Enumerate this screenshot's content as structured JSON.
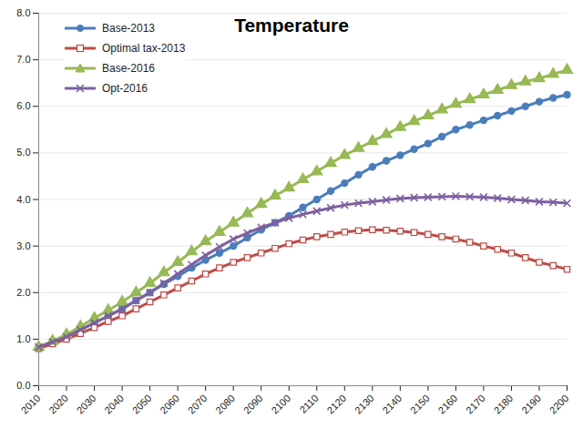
{
  "chart_data": {
    "type": "line",
    "title": "Temperature",
    "x": [
      2010,
      2015,
      2020,
      2025,
      2030,
      2035,
      2040,
      2045,
      2050,
      2055,
      2060,
      2065,
      2070,
      2075,
      2080,
      2085,
      2090,
      2095,
      2100,
      2105,
      2110,
      2115,
      2120,
      2125,
      2130,
      2135,
      2140,
      2145,
      2150,
      2155,
      2160,
      2165,
      2170,
      2175,
      2180,
      2185,
      2190,
      2195,
      2200
    ],
    "xlim": [
      2010,
      2200
    ],
    "xticks": [
      2010,
      2020,
      2030,
      2040,
      2050,
      2060,
      2070,
      2080,
      2090,
      2100,
      2110,
      2120,
      2130,
      2140,
      2150,
      2160,
      2170,
      2180,
      2190,
      2200
    ],
    "ylim": [
      0,
      8
    ],
    "yticks": [
      {
        "value": 0,
        "label": "0.0"
      },
      {
        "value": 1,
        "label": "1.0"
      },
      {
        "value": 2,
        "label": "2.0"
      },
      {
        "value": 3,
        "label": "3.0"
      },
      {
        "value": 4,
        "label": "4.0"
      },
      {
        "value": 5,
        "label": "5.0"
      },
      {
        "value": 6,
        "label": "6.0"
      },
      {
        "value": 7,
        "label": "7.0"
      },
      {
        "value": 8,
        "label": "8.0"
      }
    ],
    "grid": true,
    "legend": "top-left",
    "series": [
      {
        "name": "Base-2013",
        "color": "#4a7ebb",
        "marker": "circle",
        "values": [
          0.83,
          0.95,
          1.05,
          1.2,
          1.35,
          1.5,
          1.65,
          1.83,
          2.0,
          2.18,
          2.35,
          2.53,
          2.7,
          2.85,
          3.0,
          3.18,
          3.35,
          3.5,
          3.65,
          3.83,
          4.0,
          4.18,
          4.35,
          4.53,
          4.7,
          4.83,
          4.95,
          5.08,
          5.2,
          5.35,
          5.5,
          5.6,
          5.7,
          5.8,
          5.9,
          6.0,
          6.1,
          6.18,
          6.25
        ]
      },
      {
        "name": "Optimal tax-2013",
        "color": "#be4b48",
        "marker": "open_square",
        "values": [
          0.8,
          0.9,
          1.0,
          1.12,
          1.25,
          1.38,
          1.5,
          1.65,
          1.8,
          1.95,
          2.1,
          2.25,
          2.4,
          2.53,
          2.65,
          2.75,
          2.85,
          2.95,
          3.05,
          3.13,
          3.2,
          3.25,
          3.3,
          3.33,
          3.35,
          3.34,
          3.32,
          3.29,
          3.25,
          3.2,
          3.15,
          3.08,
          3.0,
          2.93,
          2.85,
          2.75,
          2.65,
          2.58,
          2.5
        ]
      },
      {
        "name": "Base-2016",
        "color": "#98b954",
        "marker": "triangle",
        "values": [
          0.83,
          0.96,
          1.1,
          1.27,
          1.45,
          1.62,
          1.8,
          2.0,
          2.2,
          2.43,
          2.65,
          2.88,
          3.1,
          3.3,
          3.5,
          3.7,
          3.9,
          4.08,
          4.25,
          4.43,
          4.6,
          4.78,
          4.95,
          5.1,
          5.25,
          5.4,
          5.55,
          5.68,
          5.8,
          5.93,
          6.05,
          6.15,
          6.25,
          6.35,
          6.45,
          6.53,
          6.6,
          6.69,
          6.78
        ]
      },
      {
        "name": "Opt-2016",
        "color": "#7d60a0",
        "marker": "x",
        "values": [
          0.83,
          0.94,
          1.05,
          1.2,
          1.35,
          1.5,
          1.65,
          1.83,
          2.0,
          2.2,
          2.4,
          2.6,
          2.8,
          2.98,
          3.15,
          3.28,
          3.4,
          3.5,
          3.6,
          3.68,
          3.75,
          3.82,
          3.88,
          3.92,
          3.95,
          3.99,
          4.02,
          4.04,
          4.05,
          4.06,
          4.07,
          4.06,
          4.05,
          4.03,
          4.0,
          3.98,
          3.95,
          3.94,
          3.92
        ]
      }
    ]
  }
}
